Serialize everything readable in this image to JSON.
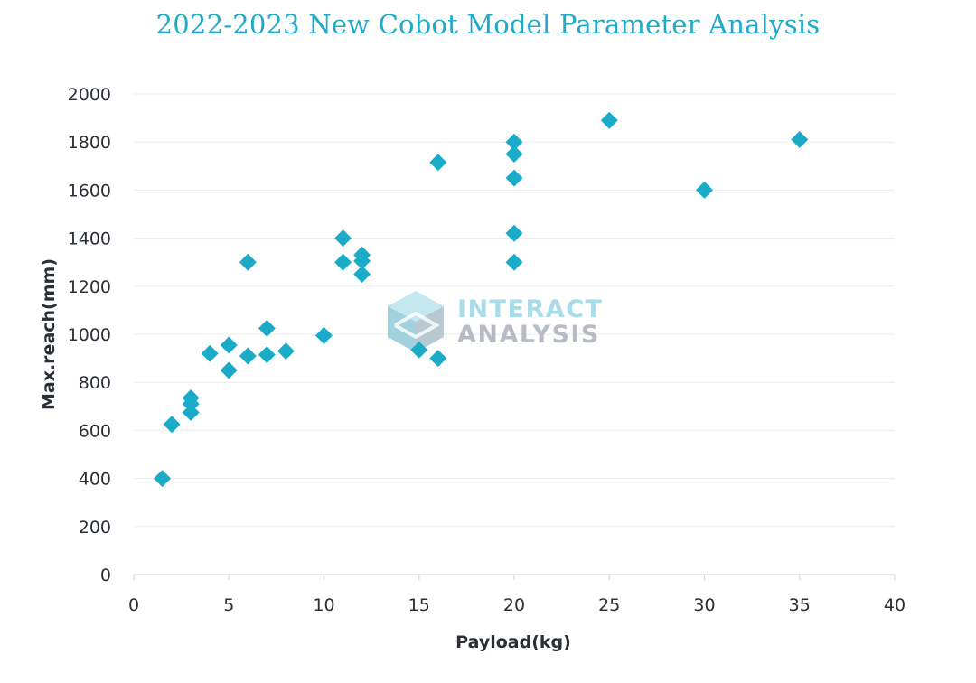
{
  "chart_data": {
    "type": "scatter",
    "title": "2022-2023 New Cobot Model Parameter Analysis",
    "xlabel": "Payload(kg)",
    "ylabel": "Max.reach(mm)",
    "xlim": [
      0,
      40
    ],
    "ylim": [
      0,
      2000
    ],
    "x_ticks": [
      0,
      5,
      10,
      15,
      20,
      25,
      30,
      35,
      40
    ],
    "y_ticks": [
      0,
      200,
      400,
      600,
      800,
      1000,
      1200,
      1400,
      1600,
      1800,
      2000
    ],
    "grid": "horizontal",
    "marker": "diamond",
    "marker_color": "#1aabc9",
    "points": [
      {
        "x": 1.5,
        "y": 400
      },
      {
        "x": 2,
        "y": 625
      },
      {
        "x": 3,
        "y": 675
      },
      {
        "x": 3,
        "y": 710
      },
      {
        "x": 3,
        "y": 735
      },
      {
        "x": 4,
        "y": 920
      },
      {
        "x": 5,
        "y": 850
      },
      {
        "x": 5,
        "y": 955
      },
      {
        "x": 6,
        "y": 910
      },
      {
        "x": 6,
        "y": 1300
      },
      {
        "x": 7,
        "y": 915
      },
      {
        "x": 7,
        "y": 1025
      },
      {
        "x": 8,
        "y": 930
      },
      {
        "x": 10,
        "y": 995
      },
      {
        "x": 11,
        "y": 1300
      },
      {
        "x": 11,
        "y": 1400
      },
      {
        "x": 12,
        "y": 1250
      },
      {
        "x": 12,
        "y": 1305
      },
      {
        "x": 12,
        "y": 1330
      },
      {
        "x": 15,
        "y": 935
      },
      {
        "x": 16,
        "y": 900
      },
      {
        "x": 16,
        "y": 1715
      },
      {
        "x": 20,
        "y": 1300
      },
      {
        "x": 20,
        "y": 1420
      },
      {
        "x": 20,
        "y": 1650
      },
      {
        "x": 20,
        "y": 1750
      },
      {
        "x": 20,
        "y": 1800
      },
      {
        "x": 25,
        "y": 1890
      },
      {
        "x": 30,
        "y": 1600
      },
      {
        "x": 35,
        "y": 1810
      }
    ]
  },
  "watermark": {
    "line1": "INTERACT",
    "line2": "ANALYSIS",
    "logo_icon": "hexagon-cube-icon",
    "color1": "#a9dbe8",
    "color2": "#b7bcc4"
  }
}
